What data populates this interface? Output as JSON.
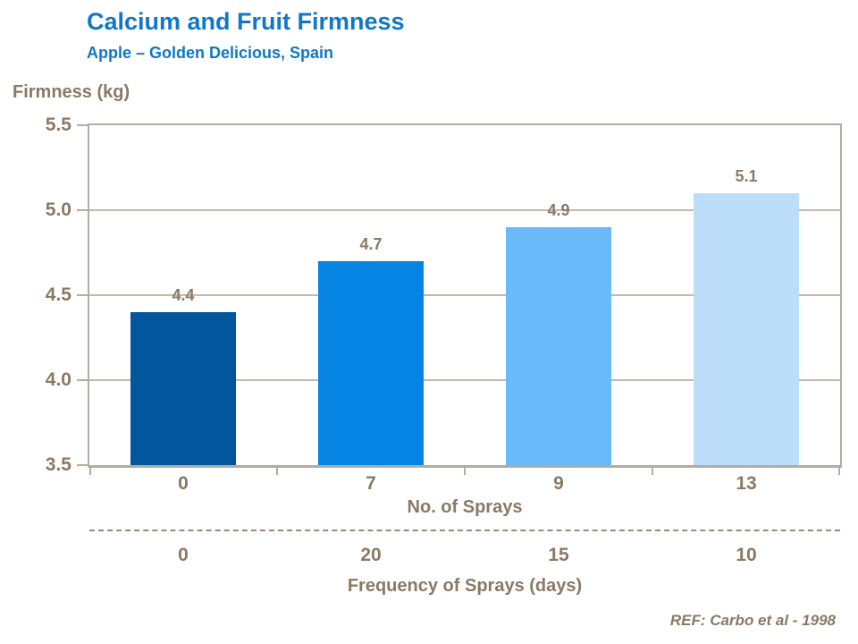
{
  "header": {
    "title": "Calcium and Fruit Firmness",
    "subtitle": "Apple – Golden Delicious, Spain"
  },
  "footer": {
    "ref": "REF: Carbo et al - 1998"
  },
  "colors": {
    "title_blue": "#1077C9",
    "text_brown": "#8A7963",
    "axis_line": "#B5AB9F",
    "gridline": "#C3B9AD",
    "dashed_divider": "#9B8B76",
    "bars": [
      "#03569C",
      "#0584E3",
      "#68BBF8",
      "#BDDEFA"
    ]
  },
  "chart_data": {
    "type": "bar",
    "title": "Calcium and Fruit Firmness",
    "subtitle": "Apple – Golden Delicious, Spain",
    "ylabel": "Firmness (kg)",
    "ylim": [
      3.5,
      5.5
    ],
    "ytick_labels": [
      "5.5",
      "5.0",
      "4.5",
      "4.0",
      "3.5"
    ],
    "categories": [
      "0",
      "7",
      "9",
      "13"
    ],
    "values": [
      4.4,
      4.7,
      4.9,
      5.1
    ],
    "value_labels": [
      "4.4",
      "4.7",
      "4.9",
      "5.1"
    ],
    "xlabel": "No. of Sprays",
    "secondary_axis": {
      "categories": [
        "0",
        "20",
        "15",
        "10"
      ],
      "xlabel": "Frequency of Sprays (days)"
    },
    "grid": true,
    "legend": false
  }
}
